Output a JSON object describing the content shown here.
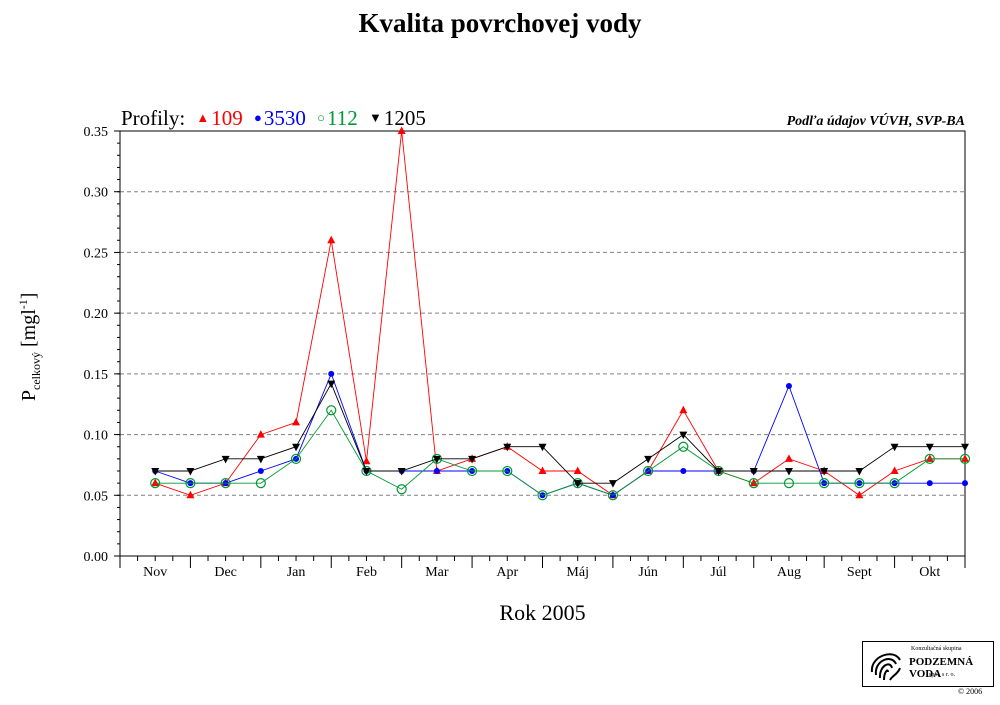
{
  "chart_data": {
    "type": "line",
    "title": "Kvalita povrchovej vody",
    "source": "Podľa údajov VÚVH, SVP-BA",
    "xlabel": "Rok 2005",
    "ylabel": {
      "main": "P",
      "sub": "celkový",
      "unit_pre": " [mgl",
      "unit_sup": "-1",
      "unit_post": "]"
    },
    "legend_title": "Profily:",
    "legend_position": "top-left",
    "categories": [
      "Nov",
      "Dec",
      "Jan",
      "Feb",
      "Mar",
      "Apr",
      "Máj",
      "Jún",
      "Júl",
      "Aug",
      "Sept",
      "Okt"
    ],
    "ylim": [
      0,
      0.35
    ],
    "yticks": [
      "0.00",
      "0.05",
      "0.10",
      "0.15",
      "0.20",
      "0.25",
      "0.30",
      "0.35"
    ],
    "grid": "horizontal-dashed",
    "series": [
      {
        "name": "109",
        "color": "#ff0000",
        "marker": "triangle-up",
        "x": [
          0.5,
          1.0,
          1.5,
          2.0,
          2.5,
          3.0,
          3.5,
          4.0,
          4.5,
          5.0,
          5.5,
          6.0,
          6.5,
          7.0,
          7.5,
          8.0,
          8.5,
          9.0,
          9.5,
          10.0,
          10.5,
          11.0,
          11.5,
          12.0
        ],
        "y": [
          0.06,
          0.05,
          0.06,
          0.1,
          0.11,
          0.26,
          0.078,
          0.35,
          0.07,
          0.08,
          0.09,
          0.07,
          0.07,
          0.05,
          0.07,
          0.12,
          0.07,
          0.06,
          0.08,
          0.07,
          0.05,
          0.07,
          0.08,
          0.08
        ]
      },
      {
        "name": "3530",
        "color": "#0000ff",
        "marker": "circle",
        "x": [
          0.5,
          1.0,
          1.5,
          2.0,
          2.5,
          3.0,
          3.5,
          4.0,
          4.5,
          5.0,
          5.5,
          6.0,
          6.5,
          7.0,
          7.5,
          8.0,
          8.5,
          9.0,
          9.5,
          10.0,
          10.5,
          11.0,
          11.5,
          12.0
        ],
        "y": [
          0.07,
          0.06,
          0.06,
          0.07,
          0.08,
          0.15,
          0.07,
          0.07,
          0.07,
          0.07,
          0.07,
          0.05,
          0.06,
          0.05,
          0.07,
          0.07,
          0.07,
          0.07,
          0.14,
          0.06,
          0.06,
          0.06,
          0.06,
          0.06
        ]
      },
      {
        "name": "112",
        "color": "#009933",
        "marker": "circle-open",
        "x": [
          0.5,
          1.0,
          1.5,
          2.0,
          2.5,
          3.0,
          3.5,
          4.0,
          4.5,
          5.0,
          5.5,
          6.0,
          6.5,
          7.0,
          7.5,
          8.0,
          8.5,
          9.0,
          9.5,
          10.0,
          10.5,
          11.0,
          11.5,
          12.0
        ],
        "y": [
          0.06,
          0.06,
          0.06,
          0.06,
          0.08,
          0.12,
          0.07,
          0.055,
          0.08,
          0.07,
          0.07,
          0.05,
          0.06,
          0.05,
          0.07,
          0.09,
          0.07,
          0.06,
          0.06,
          0.06,
          0.06,
          0.06,
          0.08,
          0.08
        ]
      },
      {
        "name": "1205",
        "color": "#000000",
        "marker": "triangle-down",
        "x": [
          0.5,
          1.0,
          1.5,
          2.0,
          2.5,
          3.0,
          3.5,
          4.0,
          4.5,
          5.0,
          5.5,
          6.0,
          6.5,
          7.0,
          7.5,
          8.0,
          8.5,
          9.0,
          9.5,
          10.0,
          10.5,
          11.0,
          11.5,
          12.0
        ],
        "y": [
          0.07,
          0.07,
          0.08,
          0.08,
          0.09,
          0.142,
          0.07,
          0.07,
          0.08,
          0.08,
          0.09,
          0.09,
          0.06,
          0.06,
          0.08,
          0.1,
          0.07,
          0.07,
          0.07,
          0.07,
          0.07,
          0.09,
          0.09,
          0.09
        ]
      }
    ]
  },
  "logo": {
    "line1": "Konzultačná skupina",
    "line2": "PODZEMNÁ VODA",
    "line3": "spol. s r. o."
  },
  "copyright": "© 2006"
}
